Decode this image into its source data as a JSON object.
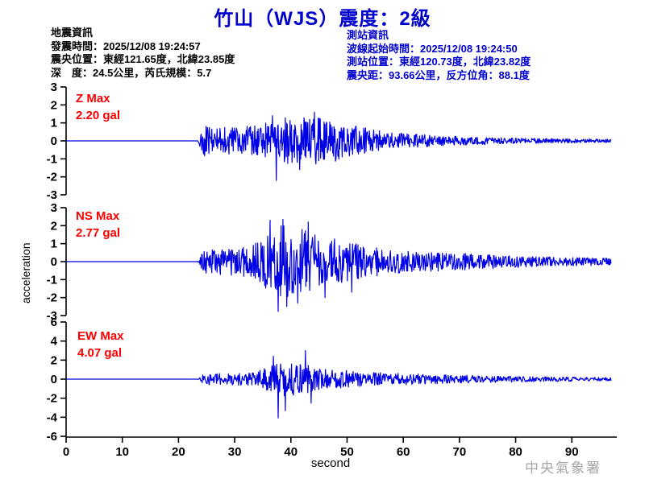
{
  "title": "竹山（WJS）震度：2級",
  "quake_info": {
    "heading": "地震資訊",
    "lines": [
      "發震時間：2025/12/08 19:24:57",
      "震央位置：東經121.65度，北緯23.85度",
      "深　度：24.5公里，芮氏規模：5.7"
    ]
  },
  "station_info": {
    "heading": "測站資訊",
    "lines": [
      "波線起始時間：2025/12/08 19:24:50",
      "測站位置：東經120.73度，北緯23.82度",
      "震央距：93.66公里，反方位角：88.1度"
    ]
  },
  "watermark": "中央氣象署",
  "colors": {
    "title_blue": "#0000cc",
    "station_info_blue": "#0000cc",
    "trace_blue": "#0000e6",
    "label_red": "#ff0000",
    "axis_black": "#000000",
    "watermark_gray": "#a6a6a6"
  },
  "chart_data": {
    "type": "line",
    "chart_kind": "seismogram-3-channel",
    "title": "竹山（WJS）震度：2級",
    "xlabel": "second",
    "ylabel": "acceleration",
    "x_range": [
      0,
      98
    ],
    "x_ticks": [
      0,
      10,
      20,
      30,
      40,
      50,
      60,
      70,
      80,
      90
    ],
    "event_onset_s": 24,
    "trace_color": "#0000e6",
    "grid": false,
    "channels": [
      {
        "id": "Z",
        "label_name": "Z Max",
        "label_value": "2.20 gal",
        "max_gal": 2.2,
        "ylim": [
          -3,
          3
        ],
        "y_ticks": [
          3,
          2,
          1,
          0,
          -1,
          -2,
          -3
        ],
        "seed": 41,
        "envelope": [
          [
            0,
            0
          ],
          [
            23.3,
            0
          ],
          [
            23.6,
            0.1
          ],
          [
            24.3,
            0.85
          ],
          [
            26,
            0.8
          ],
          [
            30,
            0.78
          ],
          [
            33,
            0.82
          ],
          [
            35,
            0.95
          ],
          [
            37,
            1.2
          ],
          [
            39,
            1.35
          ],
          [
            41,
            1.3
          ],
          [
            44,
            1.3
          ],
          [
            47,
            1.25
          ],
          [
            49,
            1.05
          ],
          [
            52,
            0.8
          ],
          [
            55,
            0.62
          ],
          [
            58,
            0.48
          ],
          [
            62,
            0.38
          ],
          [
            66,
            0.3
          ],
          [
            70,
            0.25
          ],
          [
            76,
            0.18
          ],
          [
            84,
            0.14
          ],
          [
            92,
            0.11
          ],
          [
            97,
            0.1
          ]
        ],
        "spikes": [
          [
            37.4,
            -2.2
          ],
          [
            36.7,
            1.4
          ],
          [
            41.6,
            -1.6
          ],
          [
            44.2,
            1.6
          ]
        ]
      },
      {
        "id": "NS",
        "label_name": "NS Max",
        "label_value": "2.77 gal",
        "max_gal": 2.77,
        "ylim": [
          -3,
          3
        ],
        "y_ticks": [
          3,
          2,
          1,
          0,
          -1,
          -2,
          -3
        ],
        "seed": 97,
        "envelope": [
          [
            0,
            0
          ],
          [
            23.3,
            0
          ],
          [
            23.7,
            0.12
          ],
          [
            24.4,
            0.65
          ],
          [
            27,
            0.72
          ],
          [
            30,
            0.78
          ],
          [
            33,
            0.88
          ],
          [
            35,
            1.3
          ],
          [
            36.5,
            1.9
          ],
          [
            38,
            2.1
          ],
          [
            40,
            2.0
          ],
          [
            42,
            1.8
          ],
          [
            44,
            1.55
          ],
          [
            46,
            1.4
          ],
          [
            48,
            1.3
          ],
          [
            50,
            1.1
          ],
          [
            53,
            0.9
          ],
          [
            57,
            0.75
          ],
          [
            60,
            0.6
          ],
          [
            64,
            0.55
          ],
          [
            68,
            0.5
          ],
          [
            72,
            0.45
          ],
          [
            76,
            0.4
          ],
          [
            82,
            0.3
          ],
          [
            88,
            0.26
          ],
          [
            93,
            0.22
          ],
          [
            97,
            0.2
          ]
        ],
        "spikes": [
          [
            37.7,
            -2.77
          ],
          [
            36.3,
            2.3
          ],
          [
            38.6,
            2.35
          ],
          [
            39.3,
            -2.5
          ],
          [
            41.2,
            -2.3
          ],
          [
            43.1,
            2.2
          ],
          [
            46.1,
            -2.0
          ],
          [
            50.8,
            -1.7
          ]
        ]
      },
      {
        "id": "EW",
        "label_name": "EW Max",
        "label_value": "4.07 gal",
        "max_gal": 4.07,
        "ylim": [
          -6,
          6
        ],
        "y_ticks": [
          6,
          4,
          2,
          0,
          -2,
          -4,
          -6
        ],
        "seed": 13,
        "envelope": [
          [
            0,
            0
          ],
          [
            23.3,
            0
          ],
          [
            23.7,
            0.1
          ],
          [
            24.4,
            0.55
          ],
          [
            27,
            0.6
          ],
          [
            30,
            0.62
          ],
          [
            33,
            0.7
          ],
          [
            35,
            1.1
          ],
          [
            37,
            1.6
          ],
          [
            39,
            1.8
          ],
          [
            41,
            1.7
          ],
          [
            43,
            1.5
          ],
          [
            45,
            1.2
          ],
          [
            47,
            1.05
          ],
          [
            49,
            0.95
          ],
          [
            51,
            0.85
          ],
          [
            54,
            0.75
          ],
          [
            57,
            0.65
          ],
          [
            60,
            0.6
          ],
          [
            64,
            0.52
          ],
          [
            68,
            0.45
          ],
          [
            72,
            0.4
          ],
          [
            77,
            0.33
          ],
          [
            82,
            0.28
          ],
          [
            88,
            0.24
          ],
          [
            93,
            0.2
          ],
          [
            97,
            0.18
          ]
        ],
        "spikes": [
          [
            37.7,
            -4.07
          ],
          [
            36.9,
            2.4
          ],
          [
            39.0,
            -3.3
          ],
          [
            42.6,
            3.0
          ],
          [
            43.6,
            -2.5
          ]
        ]
      }
    ]
  }
}
